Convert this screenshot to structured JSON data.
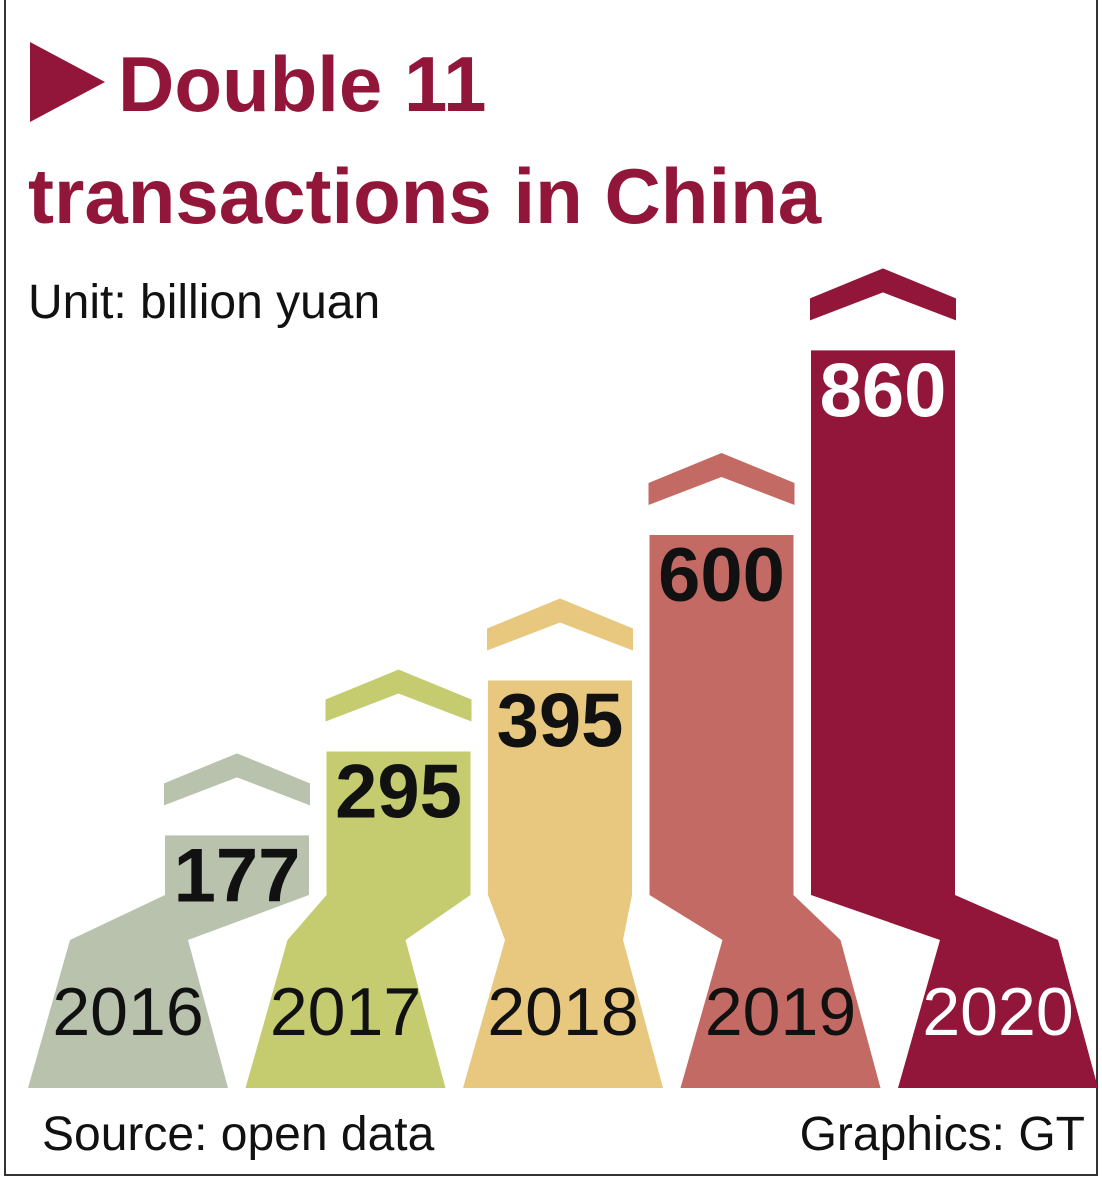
{
  "chart_data": {
    "type": "bar",
    "title": "Double 11 transactions in China",
    "subtitle": "Unit: billion yuan",
    "categories": [
      "2016",
      "2017",
      "2018",
      "2019",
      "2020"
    ],
    "values": [
      177,
      295,
      395,
      600,
      860
    ],
    "colors": [
      "#b9c2ad",
      "#c5cc6f",
      "#e8c77f",
      "#c46a64",
      "#92163a"
    ],
    "source": "Source: open data",
    "credit": "Graphics: GT"
  }
}
